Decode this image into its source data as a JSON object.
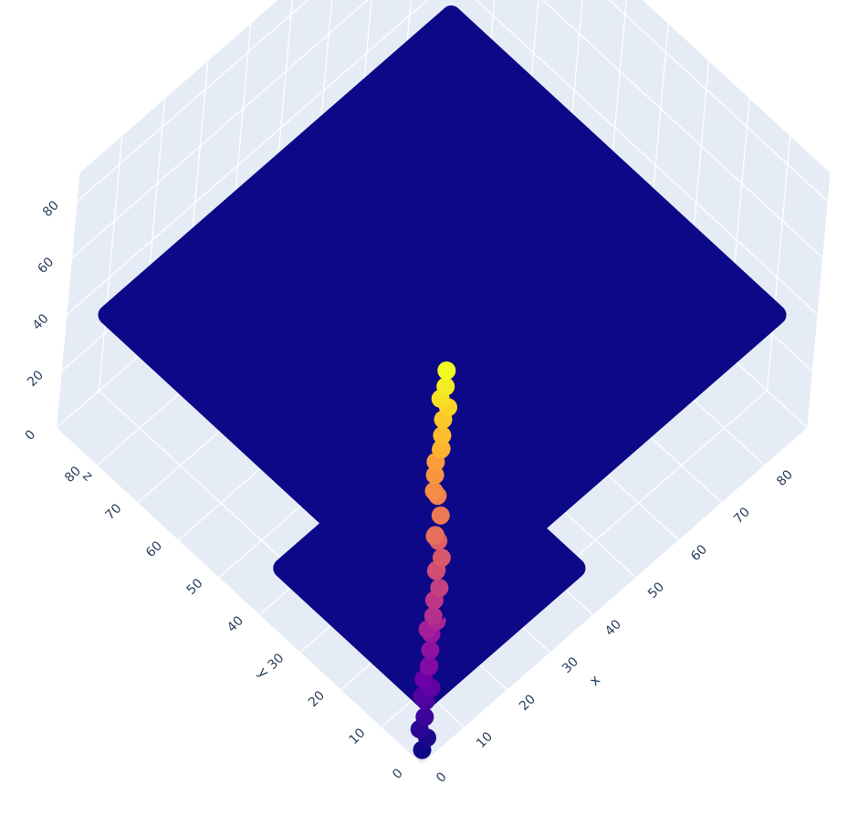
{
  "chart_data": {
    "type": "scatter3d",
    "axes": {
      "x": {
        "title": "x",
        "range": [
          0,
          90
        ],
        "ticks": [
          "0",
          "10",
          "20",
          "30",
          "40",
          "50",
          "60",
          "70",
          "80"
        ]
      },
      "y": {
        "title": "y",
        "range": [
          0,
          90
        ],
        "ticks": [
          "0",
          "10",
          "20",
          "30",
          "40",
          "50",
          "60",
          "70",
          "80"
        ]
      },
      "z": {
        "title": "z",
        "range": [
          0,
          90
        ],
        "ticks": [
          "0",
          "20",
          "40",
          "60",
          "80"
        ]
      }
    },
    "grid": true,
    "colorscale": "plasma",
    "colors": {
      "scene_background": "#e5ecf6",
      "gridline": "#ffffff",
      "tick_text": "#2a3f5f",
      "planes": "#0d0887"
    },
    "planes": [
      {
        "name": "",
        "z": 10,
        "x_range": [
          5,
          40
        ],
        "y_range": [
          5,
          40
        ]
      },
      {
        "name": "",
        "z": 40,
        "x_range": [
          5,
          85
        ],
        "y_range": [
          5,
          85
        ]
      },
      {
        "name": "",
        "z": 75,
        "x_range": [
          45,
          55
        ],
        "y_range": [
          45,
          55
        ]
      }
    ],
    "path": {
      "color_by": "z",
      "points": [
        [
          2,
          2,
          0
        ],
        [
          3,
          2,
          3
        ],
        [
          2,
          3,
          6
        ],
        [
          3,
          3,
          9
        ],
        [
          4,
          4,
          12
        ],
        [
          3,
          4,
          15
        ],
        [
          4,
          3,
          18
        ],
        [
          3,
          4,
          21
        ],
        [
          4,
          4,
          24
        ],
        [
          3,
          3,
          27
        ],
        [
          4,
          4,
          30
        ],
        [
          5,
          5,
          33
        ],
        [
          4,
          5,
          36
        ],
        [
          5,
          4,
          39
        ],
        [
          4,
          4,
          42
        ],
        [
          5,
          5,
          45
        ],
        [
          6,
          5,
          48
        ],
        [
          7,
          7,
          50
        ],
        [
          6,
          6,
          53
        ],
        [
          7,
          6,
          56
        ],
        [
          8,
          8,
          58
        ],
        [
          7,
          8,
          61
        ],
        [
          6,
          7,
          64
        ],
        [
          8,
          8,
          67
        ],
        [
          9,
          10,
          70
        ],
        [
          8,
          10,
          73
        ],
        [
          9,
          11,
          76
        ],
        [
          10,
          12,
          78
        ],
        [
          11,
          12,
          81
        ],
        [
          10,
          11,
          84
        ],
        [
          11,
          12,
          86
        ],
        [
          12,
          13,
          89
        ],
        [
          13,
          13,
          92
        ],
        [
          12,
          14,
          95
        ],
        [
          13,
          14,
          98
        ],
        [
          14,
          15,
          101
        ]
      ]
    }
  }
}
